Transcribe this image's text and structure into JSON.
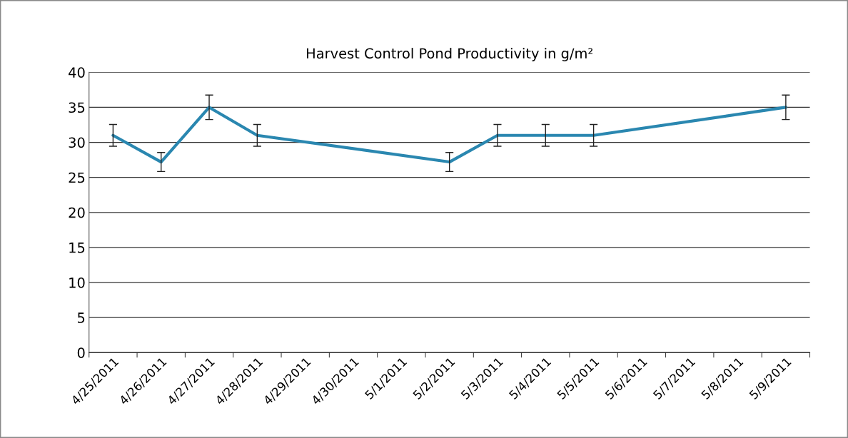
{
  "chart_data": {
    "type": "line",
    "title": "Harvest Control Pond Productivity in g/m²",
    "categories": [
      "4/25/2011",
      "4/26/2011",
      "4/27/2011",
      "4/28/2011",
      "4/29/2011",
      "4/30/2011",
      "5/1/2011",
      "5/2/2011",
      "5/3/2011",
      "5/4/2011",
      "5/5/2011",
      "5/6/2011",
      "5/7/2011",
      "5/8/2011",
      "5/9/2011"
    ],
    "values": [
      31,
      27.2,
      35,
      31,
      null,
      null,
      null,
      27.2,
      31,
      31,
      31,
      null,
      null,
      null,
      35
    ],
    "errors": [
      1.55,
      1.35,
      1.75,
      1.55,
      null,
      null,
      null,
      1.35,
      1.55,
      1.55,
      1.55,
      null,
      null,
      null,
      1.75
    ],
    "color": "#2a87b0",
    "ylim": [
      0,
      40
    ],
    "yticks": [
      0,
      5,
      10,
      15,
      20,
      25,
      30,
      35,
      40
    ],
    "grid": "y",
    "marker": "none",
    "line_style": "solid",
    "legend": false
  }
}
